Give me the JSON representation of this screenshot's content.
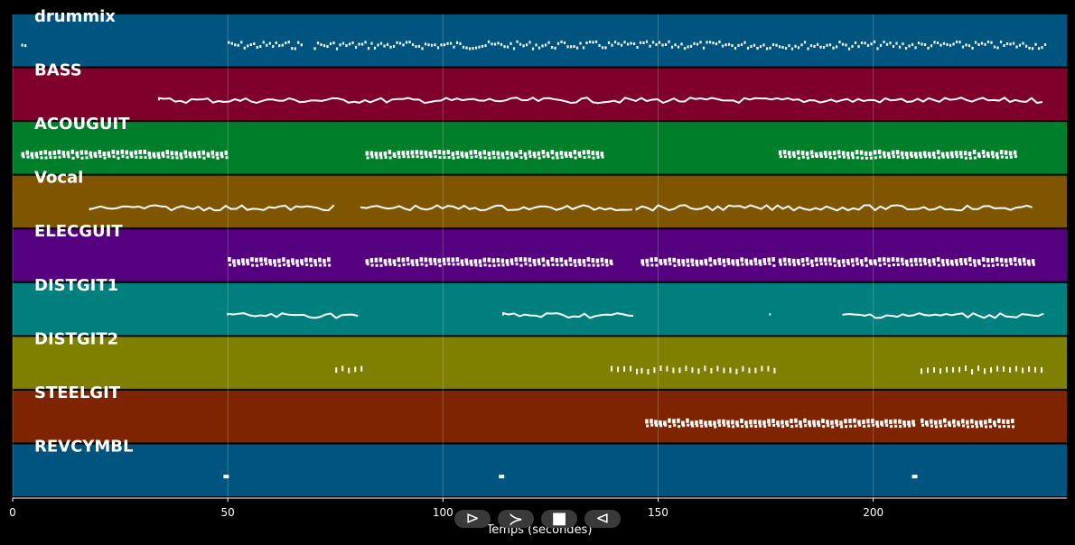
{
  "tracks": [
    {
      "name": "drummix",
      "color": "#005580"
    },
    {
      "name": "BASS",
      "color": "#7f002b"
    },
    {
      "name": "ACOUGUIT",
      "color": "#007f2a"
    },
    {
      "name": "Vocal",
      "color": "#7f5500"
    },
    {
      "name": "ELECGUIT",
      "color": "#55007f"
    },
    {
      "name": "DISTGIT1",
      "color": "#007f7f"
    },
    {
      "name": "DISTGIT2",
      "color": "#7f7f00"
    },
    {
      "name": "STEELGIT",
      "color": "#7f2400"
    },
    {
      "name": "REVCYMBL",
      "color": "#005580"
    }
  ],
  "chart_data": {
    "type": "timeline",
    "xlabel": "Temps (secondes)",
    "xlim": [
      0,
      245
    ],
    "xticks": [
      0,
      50,
      100,
      150,
      200
    ],
    "grid": true,
    "series": [
      {
        "name": "drummix",
        "segments": [
          [
            2,
            3
          ],
          [
            50,
            67
          ],
          [
            70,
            240
          ]
        ],
        "style": "dense"
      },
      {
        "name": "BASS",
        "segments": [
          [
            34,
            240
          ]
        ],
        "style": "line"
      },
      {
        "name": "ACOUGUIT",
        "segments": [
          [
            2,
            50
          ],
          [
            82,
            138
          ],
          [
            178,
            234
          ]
        ],
        "style": "blocks"
      },
      {
        "name": "Vocal",
        "segments": [
          [
            18,
            75
          ],
          [
            81,
            144
          ],
          [
            145,
            237
          ]
        ],
        "style": "line"
      },
      {
        "name": "ELECGUIT",
        "segments": [
          [
            50,
            74
          ],
          [
            82,
            140
          ],
          [
            146,
            178
          ],
          [
            178,
            238
          ]
        ],
        "style": "blocks"
      },
      {
        "name": "DISTGIT1",
        "segments": [
          [
            50,
            81
          ],
          [
            114,
            145
          ],
          [
            176,
            177
          ],
          [
            193,
            240
          ]
        ],
        "style": "line"
      },
      {
        "name": "DISTGIT2",
        "segments": [
          [
            75,
            81
          ],
          [
            139,
            145
          ],
          [
            146,
            178
          ],
          [
            211,
            240
          ]
        ],
        "style": "sparse"
      },
      {
        "name": "STEELGIT",
        "segments": [
          [
            147,
            210
          ],
          [
            211,
            233
          ]
        ],
        "style": "blocks"
      },
      {
        "name": "REVCYMBL",
        "segments": [
          [
            49,
            50
          ],
          [
            113,
            114
          ],
          [
            209,
            210
          ]
        ],
        "style": "dots"
      }
    ]
  },
  "controls": [
    {
      "name": "play-button",
      "glyph": "⊳"
    },
    {
      "name": "forward-button",
      "glyph": "≻"
    },
    {
      "name": "stop-button",
      "glyph": "■"
    },
    {
      "name": "rewind-button",
      "glyph": "⊲"
    }
  ]
}
